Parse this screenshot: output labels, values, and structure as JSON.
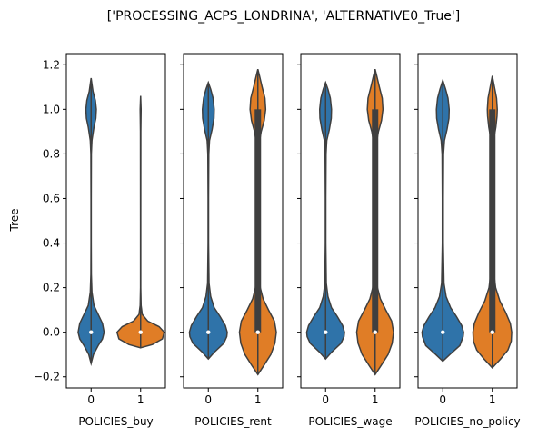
{
  "chart_data": {
    "type": "violin",
    "title": "['PROCESSING_ACPS_LONDRINA', 'ALTERNATIVE0_True']",
    "ylabel": "Tree",
    "ylim": [
      -0.25,
      1.25
    ],
    "yticks": [
      -0.2,
      0.0,
      0.2,
      0.4,
      0.6,
      0.8,
      1.0,
      1.2
    ],
    "ytick_labels": [
      "−0.2",
      "0.0",
      "0.2",
      "0.4",
      "0.6",
      "0.8",
      "1.0",
      "1.2"
    ],
    "categories": [
      "0",
      "1"
    ],
    "colors": {
      "0": "#2f73a9",
      "1": "#e07d26"
    },
    "panels": [
      {
        "xlabel": "POLICIES_buy",
        "violins": [
          {
            "category": "0",
            "median": 0.0,
            "range": [
              -0.14,
              1.14
            ],
            "iqr": [
              0.0,
              0.0
            ],
            "profile": [
              [
                -0.14,
                0.0
              ],
              [
                -0.1,
                0.1
              ],
              [
                -0.06,
                0.3
              ],
              [
                -0.03,
                0.48
              ],
              [
                0.0,
                0.55
              ],
              [
                0.04,
                0.48
              ],
              [
                0.08,
                0.3
              ],
              [
                0.12,
                0.12
              ],
              [
                0.18,
                0.035
              ],
              [
                0.26,
                0.01
              ],
              [
                0.4,
                0.005
              ],
              [
                0.6,
                0.005
              ],
              [
                0.8,
                0.01
              ],
              [
                0.86,
                0.035
              ],
              [
                0.92,
                0.12
              ],
              [
                0.96,
                0.2
              ],
              [
                1.0,
                0.22
              ],
              [
                1.04,
                0.18
              ],
              [
                1.08,
                0.08
              ],
              [
                1.14,
                0.0
              ]
            ]
          },
          {
            "category": "1",
            "median": 0.0,
            "range": [
              -0.07,
              1.06
            ],
            "iqr": [
              0.0,
              0.0
            ],
            "profile": [
              [
                -0.07,
                0.0
              ],
              [
                -0.055,
                0.5
              ],
              [
                -0.03,
                0.92
              ],
              [
                0.0,
                1.0
              ],
              [
                0.025,
                0.78
              ],
              [
                0.05,
                0.3
              ],
              [
                0.08,
                0.07
              ],
              [
                0.12,
                0.02
              ],
              [
                0.2,
                0.005
              ],
              [
                0.5,
                0.005
              ],
              [
                0.9,
                0.008
              ],
              [
                0.96,
                0.015
              ],
              [
                1.0,
                0.02
              ],
              [
                1.03,
                0.01
              ],
              [
                1.06,
                0.0
              ]
            ]
          }
        ]
      },
      {
        "xlabel": "POLICIES_rent",
        "violins": [
          {
            "category": "0",
            "median": 0.0,
            "range": [
              -0.12,
              1.12
            ],
            "iqr": [
              0.0,
              0.0
            ],
            "profile": [
              [
                -0.12,
                0.0
              ],
              [
                -0.09,
                0.25
              ],
              [
                -0.05,
                0.65
              ],
              [
                -0.02,
                0.78
              ],
              [
                0.0,
                0.8
              ],
              [
                0.03,
                0.72
              ],
              [
                0.07,
                0.5
              ],
              [
                0.11,
                0.25
              ],
              [
                0.16,
                0.1
              ],
              [
                0.22,
                0.03
              ],
              [
                0.4,
                0.01
              ],
              [
                0.6,
                0.01
              ],
              [
                0.8,
                0.02
              ],
              [
                0.86,
                0.05
              ],
              [
                0.91,
                0.16
              ],
              [
                0.96,
                0.24
              ],
              [
                1.0,
                0.25
              ],
              [
                1.05,
                0.2
              ],
              [
                1.09,
                0.1
              ],
              [
                1.12,
                0.0
              ]
            ]
          },
          {
            "category": "1",
            "median": 0.0,
            "range": [
              -0.19,
              1.18
            ],
            "iqr": [
              0.0,
              1.0
            ],
            "profile": [
              [
                -0.19,
                0.0
              ],
              [
                -0.15,
                0.25
              ],
              [
                -0.1,
                0.55
              ],
              [
                -0.05,
                0.72
              ],
              [
                0.0,
                0.78
              ],
              [
                0.05,
                0.7
              ],
              [
                0.1,
                0.45
              ],
              [
                0.15,
                0.22
              ],
              [
                0.2,
                0.1
              ],
              [
                0.3,
                0.05
              ],
              [
                0.5,
                0.04
              ],
              [
                0.7,
                0.04
              ],
              [
                0.85,
                0.06
              ],
              [
                0.9,
                0.14
              ],
              [
                0.95,
                0.27
              ],
              [
                1.0,
                0.33
              ],
              [
                1.05,
                0.3
              ],
              [
                1.1,
                0.18
              ],
              [
                1.15,
                0.07
              ],
              [
                1.18,
                0.0
              ]
            ]
          }
        ]
      },
      {
        "xlabel": "POLICIES_wage",
        "violins": [
          {
            "category": "0",
            "median": 0.0,
            "range": [
              -0.12,
              1.12
            ],
            "iqr": [
              0.0,
              0.0
            ],
            "profile": [
              [
                -0.12,
                0.0
              ],
              [
                -0.09,
                0.25
              ],
              [
                -0.05,
                0.65
              ],
              [
                -0.02,
                0.78
              ],
              [
                0.0,
                0.8
              ],
              [
                0.03,
                0.72
              ],
              [
                0.07,
                0.5
              ],
              [
                0.11,
                0.25
              ],
              [
                0.16,
                0.1
              ],
              [
                0.22,
                0.03
              ],
              [
                0.4,
                0.01
              ],
              [
                0.6,
                0.01
              ],
              [
                0.8,
                0.02
              ],
              [
                0.86,
                0.05
              ],
              [
                0.91,
                0.16
              ],
              [
                0.96,
                0.24
              ],
              [
                1.0,
                0.25
              ],
              [
                1.05,
                0.2
              ],
              [
                1.09,
                0.1
              ],
              [
                1.12,
                0.0
              ]
            ]
          },
          {
            "category": "1",
            "median": 0.0,
            "range": [
              -0.19,
              1.18
            ],
            "iqr": [
              0.0,
              1.0
            ],
            "profile": [
              [
                -0.19,
                0.0
              ],
              [
                -0.15,
                0.25
              ],
              [
                -0.1,
                0.55
              ],
              [
                -0.05,
                0.72
              ],
              [
                0.0,
                0.78
              ],
              [
                0.05,
                0.7
              ],
              [
                0.1,
                0.45
              ],
              [
                0.15,
                0.22
              ],
              [
                0.2,
                0.1
              ],
              [
                0.3,
                0.05
              ],
              [
                0.5,
                0.04
              ],
              [
                0.7,
                0.04
              ],
              [
                0.85,
                0.06
              ],
              [
                0.9,
                0.14
              ],
              [
                0.95,
                0.27
              ],
              [
                1.0,
                0.33
              ],
              [
                1.05,
                0.3
              ],
              [
                1.1,
                0.18
              ],
              [
                1.15,
                0.07
              ],
              [
                1.18,
                0.0
              ]
            ]
          }
        ]
      },
      {
        "xlabel": "POLICIES_no_policy",
        "violins": [
          {
            "category": "0",
            "median": 0.0,
            "range": [
              -0.13,
              1.13
            ],
            "iqr": [
              0.0,
              0.0
            ],
            "profile": [
              [
                -0.13,
                0.0
              ],
              [
                -0.1,
                0.3
              ],
              [
                -0.06,
                0.72
              ],
              [
                -0.02,
                0.86
              ],
              [
                0.0,
                0.88
              ],
              [
                0.03,
                0.8
              ],
              [
                0.07,
                0.58
              ],
              [
                0.11,
                0.33
              ],
              [
                0.16,
                0.14
              ],
              [
                0.22,
                0.05
              ],
              [
                0.4,
                0.02
              ],
              [
                0.6,
                0.02
              ],
              [
                0.8,
                0.03
              ],
              [
                0.86,
                0.07
              ],
              [
                0.91,
                0.18
              ],
              [
                0.96,
                0.26
              ],
              [
                1.0,
                0.27
              ],
              [
                1.05,
                0.22
              ],
              [
                1.09,
                0.12
              ],
              [
                1.13,
                0.0
              ]
            ]
          },
          {
            "category": "1",
            "median": 0.0,
            "range": [
              -0.16,
              1.15
            ],
            "iqr": [
              0.0,
              1.0
            ],
            "profile": [
              [
                -0.16,
                0.0
              ],
              [
                -0.12,
                0.35
              ],
              [
                -0.08,
                0.66
              ],
              [
                -0.04,
                0.8
              ],
              [
                0.0,
                0.82
              ],
              [
                0.04,
                0.76
              ],
              [
                0.09,
                0.56
              ],
              [
                0.14,
                0.32
              ],
              [
                0.2,
                0.14
              ],
              [
                0.28,
                0.05
              ],
              [
                0.45,
                0.02
              ],
              [
                0.65,
                0.02
              ],
              [
                0.82,
                0.03
              ],
              [
                0.87,
                0.07
              ],
              [
                0.92,
                0.15
              ],
              [
                0.97,
                0.2
              ],
              [
                1.0,
                0.21
              ],
              [
                1.05,
                0.18
              ],
              [
                1.1,
                0.09
              ],
              [
                1.15,
                0.0
              ]
            ]
          }
        ]
      }
    ]
  }
}
